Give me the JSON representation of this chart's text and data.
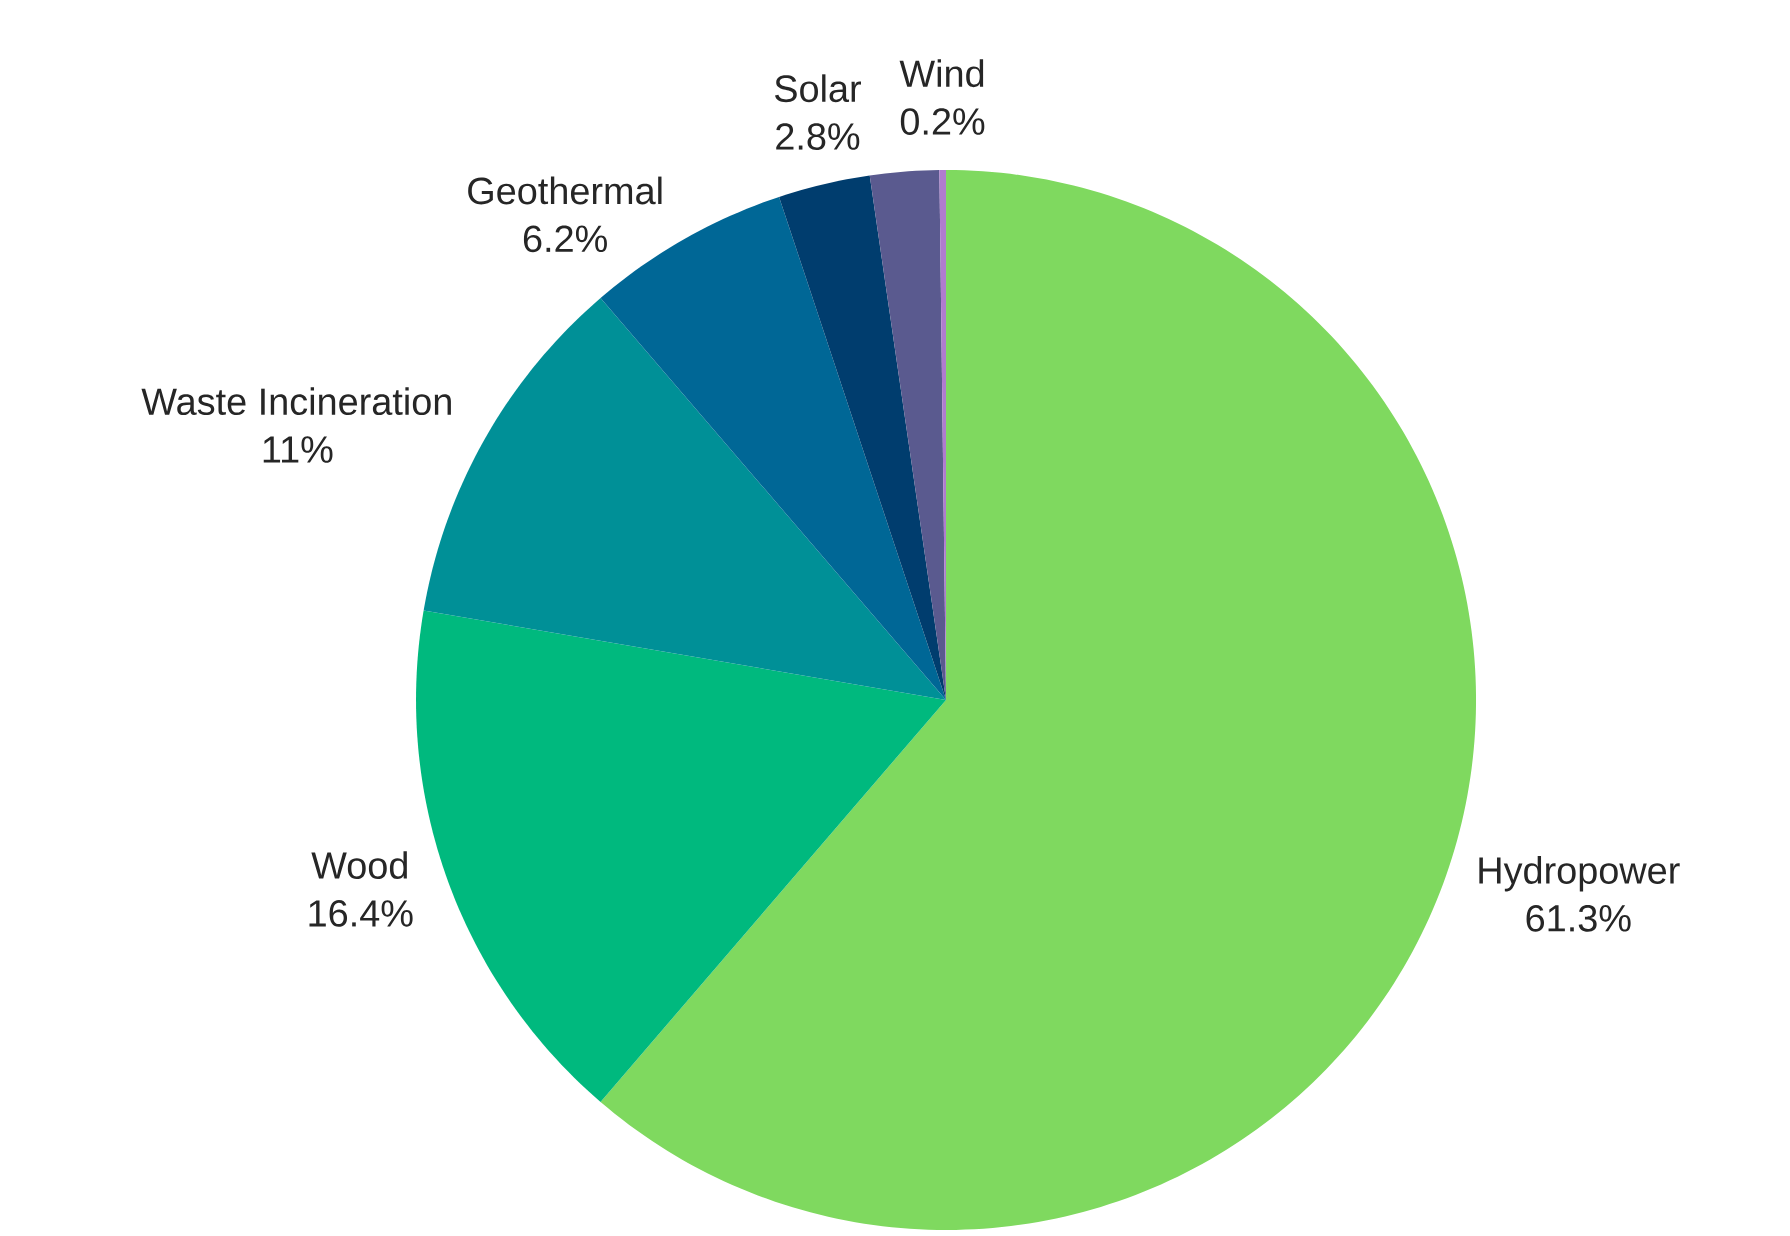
{
  "chart_data": {
    "type": "pie",
    "categories": [
      "Hydropower",
      "Wood",
      "Waste Incineration",
      "Geothermal",
      "Solar",
      null,
      "Wind"
    ],
    "values": [
      61.3,
      16.4,
      11,
      6.2,
      2.8,
      2.1,
      0.2
    ],
    "value_labels": [
      "61.3%",
      "16.4%",
      "11%",
      "6.2%",
      "2.8%",
      null,
      "0.2%"
    ],
    "colors": [
      "#7fd95f",
      "#00b97e",
      "#009097",
      "#006796",
      "#003d6e",
      "#5a5a8f",
      "#b07ccf"
    ]
  }
}
